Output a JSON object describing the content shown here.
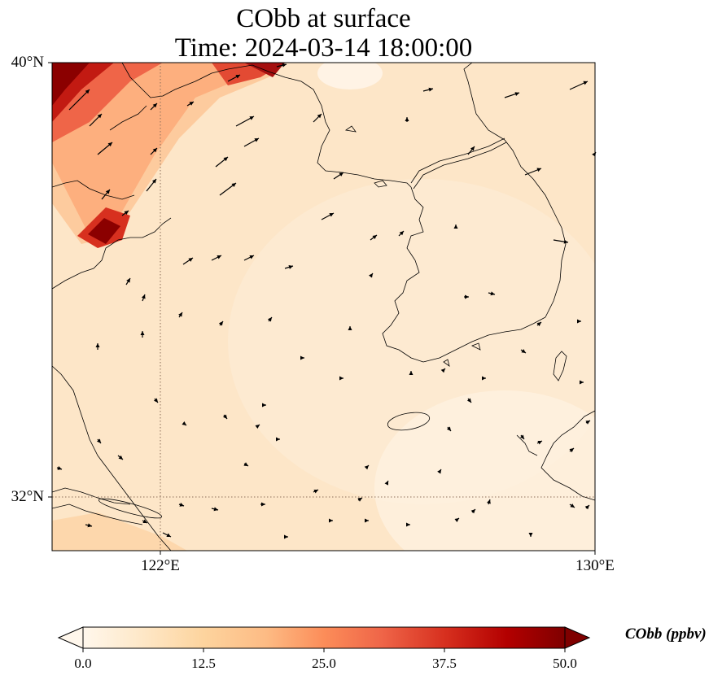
{
  "title": {
    "line1": "CObb at surface",
    "line2": "Time: 2024-03-14 18:00:00"
  },
  "axes": {
    "lat_ticks": [
      "40°N",
      "32°N"
    ],
    "lon_ticks": [
      "122°E",
      "130°E"
    ]
  },
  "colorbar": {
    "label": "CObb (ppbv)",
    "ticks": [
      "0.0",
      "12.5",
      "25.0",
      "37.5",
      "50.0"
    ],
    "min": 0.0,
    "max": 50.0,
    "colormap": "OrRd",
    "extend": "both"
  },
  "colors": {
    "background_field": "#fde8cd",
    "high": "#8b0000",
    "coastline": "#000000",
    "gridline": "#8c6e5a"
  },
  "map": {
    "lon_range": [
      120,
      130
    ],
    "lat_range": [
      31,
      40
    ],
    "gridlines": "dotted at 122°E and 32°N"
  }
}
